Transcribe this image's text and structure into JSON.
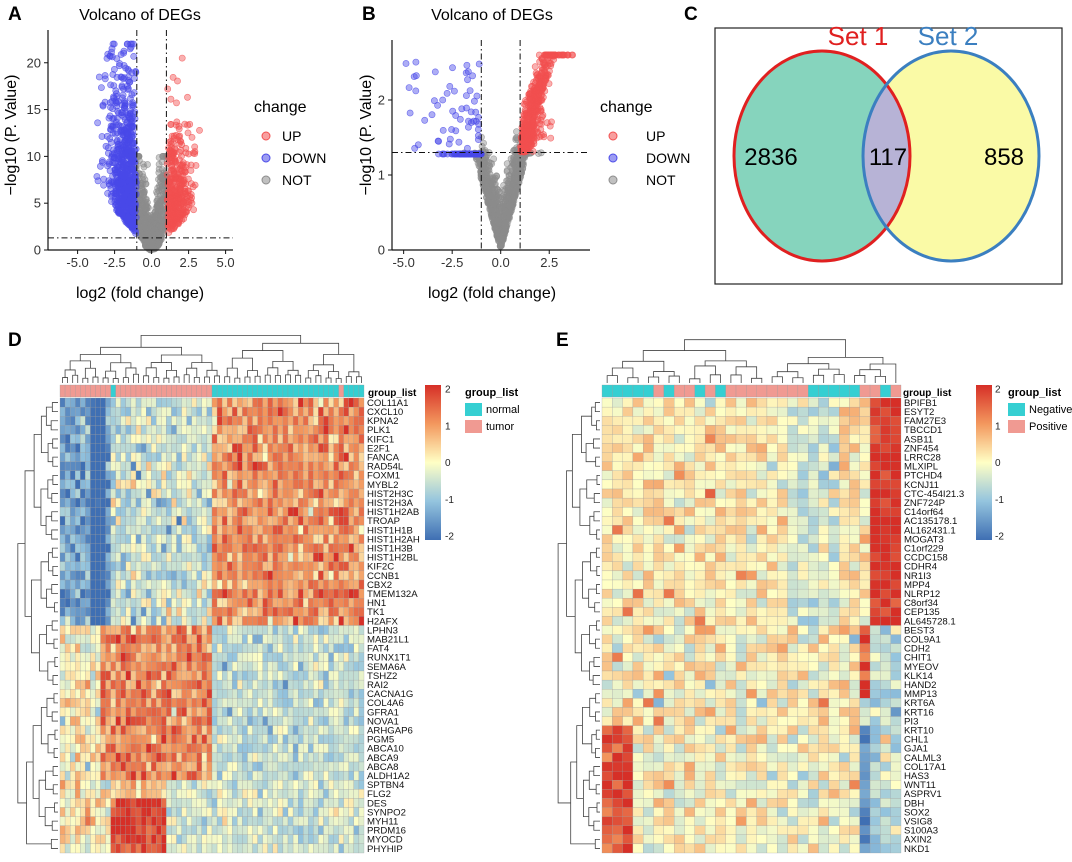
{
  "panel_labels": [
    "A",
    "B",
    "C",
    "D",
    "E"
  ],
  "legend_colors": {
    "up": "#f25050",
    "down": "#4a4ae8",
    "not": "#8c8c8c"
  },
  "chart_data": [
    {
      "id": "A",
      "type": "scatter",
      "title": "Volcano of DEGs",
      "xlabel": "log2 (fold change)",
      "ylabel": "−log10 (P. Value)",
      "xlim": [
        -7,
        5.5
      ],
      "ylim": [
        0,
        23.5
      ],
      "xticks": [
        -5.0,
        -2.5,
        0.0,
        2.5,
        5.0
      ],
      "xtick_labels": [
        "-5.0",
        "-2.5",
        "0.0",
        "2.5",
        "5.0"
      ],
      "yticks": [
        0,
        5,
        10,
        15,
        20
      ],
      "ytick_labels": [
        "0",
        "5",
        "10",
        "15",
        "20"
      ],
      "vlines": [
        -1,
        1
      ],
      "hline": 1.3,
      "n_points": {
        "UP": 380,
        "DOWN": 700,
        "NOT": 900
      },
      "legend": {
        "title": "change",
        "entries": [
          "UP",
          "DOWN",
          "NOT"
        ]
      }
    },
    {
      "id": "B",
      "type": "scatter",
      "title": "Volcano of DEGs",
      "xlabel": "log2 (fold change)",
      "ylabel": "−log10 (P. Value)",
      "xlim": [
        -5.6,
        4.6
      ],
      "ylim": [
        0,
        2.8
      ],
      "xticks": [
        -5.0,
        -2.5,
        0.0,
        2.5
      ],
      "xtick_labels": [
        "-5.0",
        "-2.5",
        "0.0",
        "2.5"
      ],
      "yticks": [
        0,
        1,
        2
      ],
      "ytick_labels": [
        "0",
        "1",
        "2"
      ],
      "vlines": [
        -1,
        1
      ],
      "hline": 1.3,
      "n_points": {
        "UP": 420,
        "DOWN": 55,
        "NOT": 1100
      },
      "legend": {
        "title": "change",
        "entries": [
          "UP",
          "DOWN",
          "NOT"
        ]
      }
    },
    {
      "id": "C",
      "type": "venn",
      "sets": [
        {
          "name": "Set 1",
          "only": 2836,
          "fill": "#86d4bd",
          "stroke": "#e02020"
        },
        {
          "name": "Set 2",
          "only": 858,
          "fill": "#fafaa6",
          "stroke": "#3b7fc0"
        }
      ],
      "overlap": 117,
      "overlap_fill": "#b7b3d6"
    },
    {
      "id": "D",
      "type": "heatmap",
      "n_cols": 60,
      "groups": [
        "tumor",
        "tumor",
        "tumor",
        "tumor",
        "tumor",
        "tumor",
        "tumor",
        "tumor",
        "tumor",
        "tumor",
        "normal",
        "tumor",
        "tumor",
        "tumor",
        "tumor",
        "tumor",
        "tumor",
        "tumor",
        "tumor",
        "tumor",
        "tumor",
        "tumor",
        "tumor",
        "tumor",
        "tumor",
        "tumor",
        "tumor",
        "tumor",
        "tumor",
        "tumor",
        "normal",
        "normal",
        "normal",
        "normal",
        "normal",
        "normal",
        "normal",
        "normal",
        "normal",
        "normal",
        "normal",
        "normal",
        "normal",
        "normal",
        "normal",
        "normal",
        "normal",
        "normal",
        "normal",
        "normal",
        "normal",
        "normal",
        "normal",
        "normal",
        "normal",
        "tumor",
        "normal",
        "normal",
        "normal",
        "normal"
      ],
      "rows": [
        "COL11A1",
        "CXCL10",
        "KPNA2",
        "PLK1",
        "KIFC1",
        "E2F1",
        "FANCA",
        "RAD54L",
        "FOXM1",
        "MYBL2",
        "HIST2H3C",
        "HIST2H3A",
        "HIST1H2AB",
        "TROAP",
        "HIST1H1B",
        "HIST1H2AH",
        "HIST1H3B",
        "HIST1H2BL",
        "KIF2C",
        "CCNB1",
        "CBX2",
        "TMEM132A",
        "HN1",
        "TK1",
        "H2AFX",
        "LPHN3",
        "MAB21L1",
        "FAT4",
        "RUNX1T1",
        "SEMA6A",
        "TSHZ2",
        "RAI2",
        "CACNA1G",
        "COL4A6",
        "GFRA1",
        "NOVA1",
        "ARHGAP6",
        "PGM5",
        "ABCA10",
        "ABCA9",
        "ABCA8",
        "ALDH1A2",
        "SPTBN4",
        "FLG2",
        "DES",
        "SYNPO2",
        "MYH11",
        "PRDM16",
        "MYOCD",
        "PHYHIP"
      ],
      "legend_title": "group_list",
      "legend_entries": [
        {
          "label": "normal",
          "color": "#35cfd2"
        },
        {
          "label": "tumor",
          "color": "#f09a92"
        }
      ],
      "scale": {
        "min": -2,
        "max": 2,
        "ticks": [
          "2",
          "1",
          "0",
          "-1",
          "-2"
        ]
      }
    },
    {
      "id": "E",
      "type": "heatmap",
      "n_cols": 29,
      "groups": [
        "Negative",
        "Negative",
        "Negative",
        "Negative",
        "Negative",
        "Positive",
        "Negative",
        "Positive",
        "Positive",
        "Negative",
        "Positive",
        "Negative",
        "Positive",
        "Positive",
        "Positive",
        "Positive",
        "Positive",
        "Positive",
        "Positive",
        "Positive",
        "Negative",
        "Negative",
        "Negative",
        "Negative",
        "Negative",
        "Positive",
        "Positive",
        "Negative",
        "Positive"
      ],
      "rows": [
        "BPIFB1",
        "ESYT2",
        "FAM27E3",
        "TBCCD1",
        "ASB11",
        "ZNF454",
        "LRRC28",
        "MLXIPL",
        "PTCHD4",
        "KCNJ11",
        "CTC-454I21.3",
        "ZNF724P",
        "C14orf64",
        "AC135178.1",
        "AL162431.1",
        "MOGAT3",
        "C1orf229",
        "CCDC158",
        "CDHR4",
        "NR1I3",
        "MPP4",
        "NLRP12",
        "C8orf34",
        "CEP135",
        "AL645728.1",
        "BEST3",
        "COL9A1",
        "CDH2",
        "CHIT1",
        "MYEOV",
        "KLK14",
        "HAND2",
        "MMP13",
        "KRT6A",
        "KRT16",
        "PI3",
        "KRT10",
        "CHL1",
        "GJA1",
        "CALML3",
        "COL17A1",
        "HAS3",
        "WNT11",
        "ASPRV1",
        "DBH",
        "SOX2",
        "VSIG8",
        "S100A3",
        "AXIN2",
        "NKD1"
      ],
      "legend_title": "group_list",
      "legend_entries": [
        {
          "label": "Negative",
          "color": "#35cfd2"
        },
        {
          "label": "Positive",
          "color": "#f09a92"
        }
      ],
      "scale": {
        "min": -2,
        "max": 2,
        "ticks": [
          "2",
          "1",
          "0",
          "-1",
          "-2"
        ]
      }
    }
  ]
}
